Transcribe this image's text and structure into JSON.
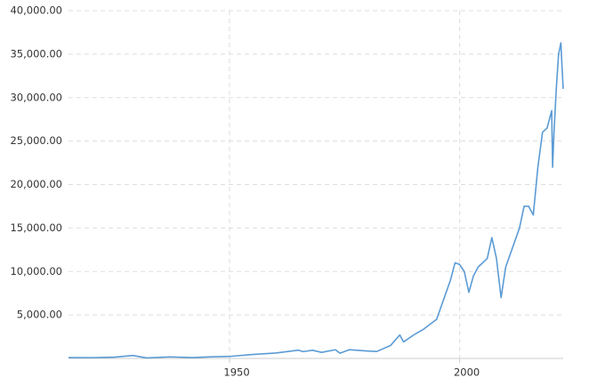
{
  "chart_data": {
    "type": "line",
    "x": [
      1915,
      1920,
      1925,
      1929,
      1932,
      1937,
      1942,
      1946,
      1950,
      1955,
      1960,
      1965,
      1966,
      1968,
      1970,
      1973,
      1974,
      1976,
      1980,
      1982,
      1985,
      1987,
      1987.8,
      1990,
      1992,
      1995,
      1997,
      1998,
      1999,
      2000,
      2001,
      2002,
      2003,
      2004,
      2006,
      2007,
      2008,
      2009,
      2010,
      2011,
      2013,
      2014,
      2015,
      2016,
      2017,
      2018,
      2019,
      2020,
      2020.2,
      2020.5,
      2021,
      2021.5,
      2022,
      2022.3,
      2022.5
    ],
    "series": [
      {
        "color": "#5b9bd5",
        "values": [
          100,
          90,
          150,
          340,
          60,
          180,
          100,
          190,
          230,
          450,
          620,
          950,
          780,
          940,
          700,
          1000,
          600,
          1000,
          850,
          800,
          1500,
          2700,
          1900,
          2700,
          3300,
          4500,
          7500,
          9000,
          11000,
          10800,
          10000,
          7600,
          9500,
          10500,
          11500,
          13900,
          11500,
          7000,
          10500,
          12000,
          15000,
          17500,
          17500,
          16500,
          22000,
          26000,
          26500,
          28500,
          22000,
          26000,
          31000,
          35000,
          36300,
          33000,
          31000
        ]
      }
    ],
    "xlim": [
      1915,
      2022.5
    ],
    "xticks": [
      1950,
      2000
    ],
    "ylim": [
      0,
      40000
    ],
    "yticks": [
      {
        "value": 5000,
        "label": "5,000.00"
      },
      {
        "value": 10000,
        "label": "10,000.00"
      },
      {
        "value": 15000,
        "label": "15,000.00"
      },
      {
        "value": 20000,
        "label": "20,000.00"
      },
      {
        "value": 25000,
        "label": "25,000.00"
      },
      {
        "value": 30000,
        "label": "30,000.00"
      },
      {
        "value": 35000,
        "label": "35,000.00"
      },
      {
        "value": 40000,
        "label": "40,000.00"
      }
    ],
    "grid": true
  }
}
